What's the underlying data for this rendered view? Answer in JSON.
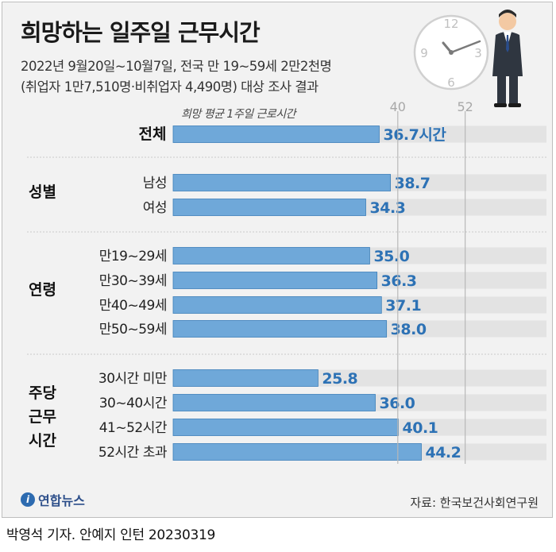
{
  "header": {
    "title": "희망하는 일주일 근무시간",
    "subtitle_line1": "2022년 9월20일~10월7일, 전국 만 19~59세 2만2천명",
    "subtitle_line2": "(취업자 1만7,510명·비취업자 4,490명) 대상 조사 결과"
  },
  "chart_data": {
    "type": "bar",
    "orientation": "horizontal",
    "axis_caption": "희망 평균 1주일 근로시간",
    "reference_lines": [
      40,
      52
    ],
    "xlim": [
      0,
      52
    ],
    "unit_suffix": "시간",
    "groups": [
      {
        "label": "전체",
        "rows": [
          {
            "category": "",
            "value": 36.7,
            "label": "36.7시간"
          }
        ]
      },
      {
        "label": "성별",
        "rows": [
          {
            "category": "남성",
            "value": 38.7,
            "label": "38.7"
          },
          {
            "category": "여성",
            "value": 34.3,
            "label": "34.3"
          }
        ]
      },
      {
        "label": "연령",
        "rows": [
          {
            "category": "만19~29세",
            "value": 35.0,
            "label": "35.0"
          },
          {
            "category": "만30~39세",
            "value": 36.3,
            "label": "36.3"
          },
          {
            "category": "만40~49세",
            "value": 37.1,
            "label": "37.1"
          },
          {
            "category": "만50~59세",
            "value": 38.0,
            "label": "38.0"
          }
        ]
      },
      {
        "label": "주당 근무 시간",
        "rows": [
          {
            "category": "30시간 미만",
            "value": 25.8,
            "label": "25.8"
          },
          {
            "category": "30~40시간",
            "value": 36.0,
            "label": "36.0"
          },
          {
            "category": "41~52시간",
            "value": 40.1,
            "label": "40.1"
          },
          {
            "category": "52시간 초과",
            "value": 44.2,
            "label": "44.2"
          }
        ]
      }
    ],
    "colors": {
      "bar": "#6fa8d9",
      "bar_stroke": "#3d7fb8",
      "track": "#e3e3e3",
      "value_text": "#2d72b5",
      "ref_line": "#b8b8b8"
    }
  },
  "clock": {
    "numbers": [
      "12",
      "3",
      "6",
      "9"
    ]
  },
  "footer": {
    "logo_mark": "i",
    "logo_text": "연합뉴스",
    "source": "자료: 한국보건사회연구원",
    "credit": "박영석 기자. 안예지 인턴  20230319"
  }
}
